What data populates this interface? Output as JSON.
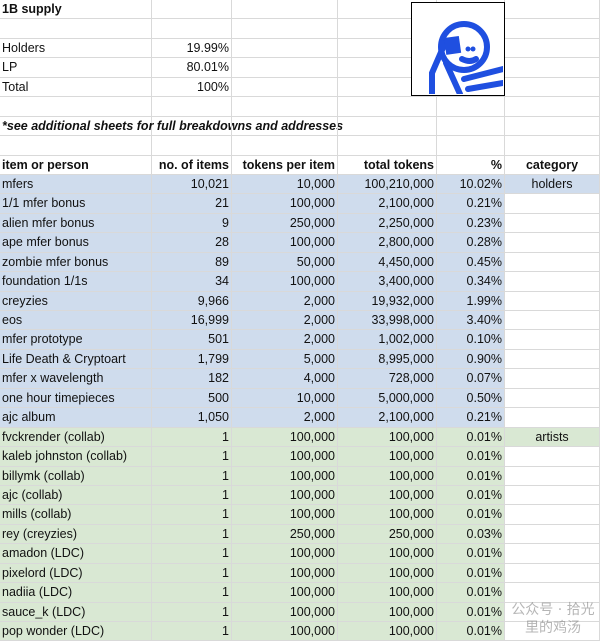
{
  "summary": {
    "title": "1B supply",
    "rows": [
      {
        "label": "Holders",
        "value": "19.99%"
      },
      {
        "label": "LP",
        "value": "80.01%"
      },
      {
        "label": "Total",
        "value": "100%"
      }
    ],
    "note": "*see additional sheets for full breakdowns and addresses"
  },
  "headers": [
    "item or person",
    "no. of items",
    "tokens per item",
    "total tokens",
    "%",
    "category"
  ],
  "colors": {
    "holders": "#cfdced",
    "artists": "#d9e8d3",
    "logo_blue": "#1f4fe0"
  },
  "rows": [
    {
      "name": "mfers",
      "count": "10,021",
      "per": "10,000",
      "total": "100,210,000",
      "pct": "10.02%",
      "category": "holders",
      "group": "blue"
    },
    {
      "name": "1/1 mfer bonus",
      "count": "21",
      "per": "100,000",
      "total": "2,100,000",
      "pct": "0.21%",
      "group": "blue"
    },
    {
      "name": "alien mfer bonus",
      "count": "9",
      "per": "250,000",
      "total": "2,250,000",
      "pct": "0.23%",
      "group": "blue"
    },
    {
      "name": "ape mfer bonus",
      "count": "28",
      "per": "100,000",
      "total": "2,800,000",
      "pct": "0.28%",
      "group": "blue"
    },
    {
      "name": "zombie mfer bonus",
      "count": "89",
      "per": "50,000",
      "total": "4,450,000",
      "pct": "0.45%",
      "group": "blue"
    },
    {
      "name": "foundation 1/1s",
      "count": "34",
      "per": "100,000",
      "total": "3,400,000",
      "pct": "0.34%",
      "group": "blue"
    },
    {
      "name": "creyzies",
      "count": "9,966",
      "per": "2,000",
      "total": "19,932,000",
      "pct": "1.99%",
      "group": "blue"
    },
    {
      "name": "eos",
      "count": "16,999",
      "per": "2,000",
      "total": "33,998,000",
      "pct": "3.40%",
      "group": "blue"
    },
    {
      "name": "mfer prototype",
      "count": "501",
      "per": "2,000",
      "total": "1,002,000",
      "pct": "0.10%",
      "group": "blue"
    },
    {
      "name": "Life Death & Cryptoart",
      "count": "1,799",
      "per": "5,000",
      "total": "8,995,000",
      "pct": "0.90%",
      "group": "blue"
    },
    {
      "name": "mfer x wavelength",
      "count": "182",
      "per": "4,000",
      "total": "728,000",
      "pct": "0.07%",
      "group": "blue"
    },
    {
      "name": "one hour timepieces",
      "count": "500",
      "per": "10,000",
      "total": "5,000,000",
      "pct": "0.50%",
      "group": "blue"
    },
    {
      "name": "ajc album",
      "count": "1,050",
      "per": "2,000",
      "total": "2,100,000",
      "pct": "0.21%",
      "group": "blue"
    },
    {
      "name": "fvckrender (collab)",
      "count": "1",
      "per": "100,000",
      "total": "100,000",
      "pct": "0.01%",
      "category": "artists",
      "group": "green"
    },
    {
      "name": "kaleb johnston (collab)",
      "count": "1",
      "per": "100,000",
      "total": "100,000",
      "pct": "0.01%",
      "group": "green"
    },
    {
      "name": "billymk (collab)",
      "count": "1",
      "per": "100,000",
      "total": "100,000",
      "pct": "0.01%",
      "group": "green"
    },
    {
      "name": "ajc (collab)",
      "count": "1",
      "per": "100,000",
      "total": "100,000",
      "pct": "0.01%",
      "group": "green"
    },
    {
      "name": "mills (collab)",
      "count": "1",
      "per": "100,000",
      "total": "100,000",
      "pct": "0.01%",
      "group": "green"
    },
    {
      "name": "rey (creyzies)",
      "count": "1",
      "per": "250,000",
      "total": "250,000",
      "pct": "0.03%",
      "group": "green"
    },
    {
      "name": "amadon (LDC)",
      "count": "1",
      "per": "100,000",
      "total": "100,000",
      "pct": "0.01%",
      "group": "green"
    },
    {
      "name": "pixelord (LDC)",
      "count": "1",
      "per": "100,000",
      "total": "100,000",
      "pct": "0.01%",
      "group": "green"
    },
    {
      "name": "nadiia (LDC)",
      "count": "1",
      "per": "100,000",
      "total": "100,000",
      "pct": "0.01%",
      "group": "green"
    },
    {
      "name": "sauce_k (LDC)",
      "count": "1",
      "per": "100,000",
      "total": "100,000",
      "pct": "0.01%",
      "group": "green"
    },
    {
      "name": "pop wonder (LDC)",
      "count": "1",
      "per": "100,000",
      "total": "100,000",
      "pct": "0.01%",
      "group": "green"
    }
  ],
  "watermark": "公众号 · 拾光里的鸡汤"
}
